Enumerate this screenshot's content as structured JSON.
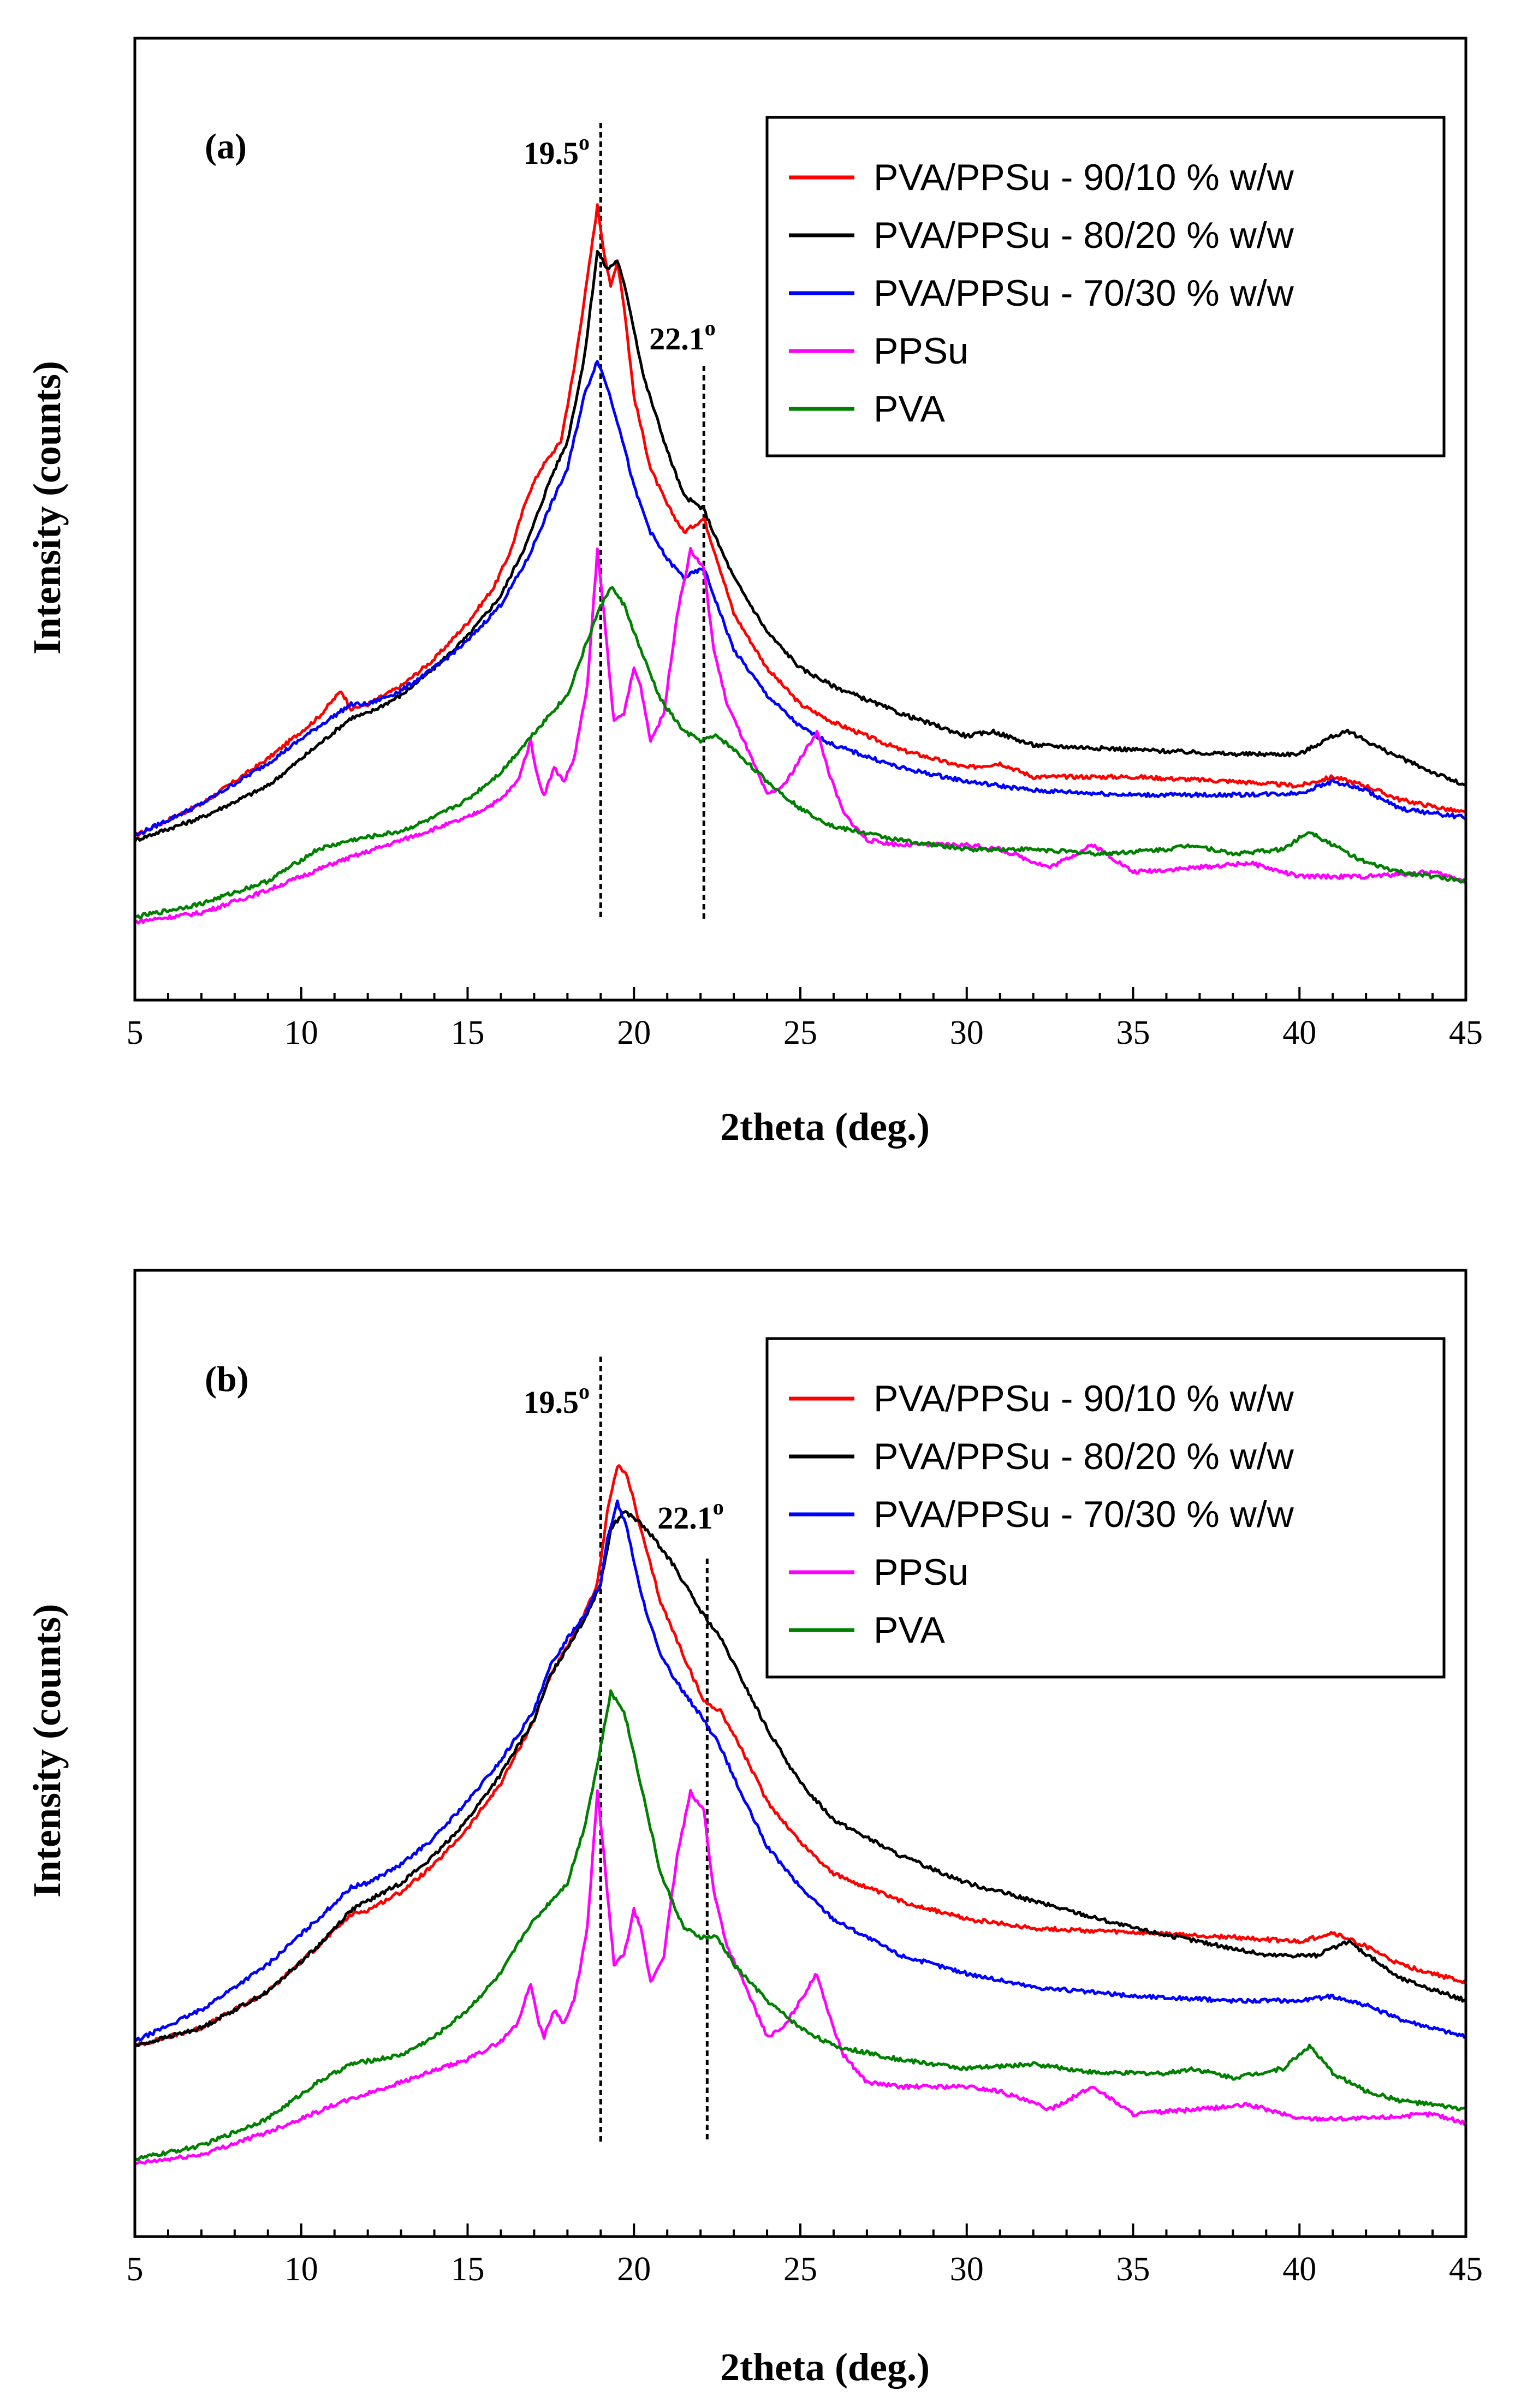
{
  "chart_data": [
    {
      "panel": "(a)",
      "type": "line",
      "xlabel": "2theta (deg.)",
      "ylabel": "Intensity (counts)",
      "xlim": [
        5,
        45
      ],
      "ylim": [
        0,
        100
      ],
      "xticks": [
        5,
        10,
        15,
        20,
        25,
        30,
        35,
        40,
        45
      ],
      "yticks_shown": false,
      "legend_position": "top-right",
      "annotations": [
        {
          "text": "19.5",
          "superscript": "o",
          "line_x": 19.0
        },
        {
          "text": "22.1",
          "superscript": "o",
          "line_x": 22.1
        }
      ],
      "series": [
        {
          "name": "PVA/PPSu - 90/10 % w/w",
          "color": "#ff0000",
          "x": [
            5,
            7,
            9,
            10.5,
            11.2,
            11.5,
            12,
            13,
            14,
            15,
            15.8,
            16.3,
            16.8,
            17.2,
            17.8,
            18.2,
            18.6,
            18.9,
            19.1,
            19.3,
            19.5,
            19.7,
            20,
            20.5,
            21,
            21.5,
            22.1,
            22.5,
            23,
            24,
            25,
            26,
            28,
            30,
            31,
            32,
            35,
            38,
            40,
            41,
            42,
            43,
            45
          ],
          "y": [
            13.5,
            17,
            22,
            26.5,
            29.5,
            27.5,
            28,
            30,
            33,
            37,
            41,
            45,
            51,
            54,
            57,
            65,
            75,
            83,
            78,
            74,
            77,
            72,
            62,
            54,
            50,
            47,
            48.5,
            44,
            38,
            32,
            28,
            26,
            23,
            21,
            21.5,
            20,
            20,
            19.5,
            19,
            20,
            19,
            17.5,
            16
          ]
        },
        {
          "name": "PVA/PPSu - 80/20 % w/w",
          "color": "#000000",
          "x": [
            5,
            7,
            9,
            10.5,
            11.5,
            12,
            13,
            14,
            15,
            16,
            16.8,
            17.5,
            18,
            18.5,
            18.9,
            19.2,
            19.5,
            19.8,
            20.3,
            21,
            21.5,
            22.1,
            22.5,
            23,
            24,
            25,
            26,
            28,
            30,
            30.8,
            32,
            35,
            38,
            40,
            41,
            41.5,
            42.5,
            44,
            45
          ],
          "y": [
            13,
            15.5,
            19,
            23.5,
            26.5,
            27,
            29,
            32,
            35.5,
            40,
            46,
            53,
            57,
            66,
            78,
            76,
            77,
            73,
            64,
            56,
            51,
            49.5,
            46,
            42,
            36,
            32,
            30,
            27,
            24.5,
            25,
            23.5,
            23,
            22.5,
            22.5,
            24.5,
            25,
            23,
            20.5,
            19
          ]
        },
        {
          "name": "PVA/PPSu - 70/30 % w/w",
          "color": "#0000ff",
          "x": [
            5,
            7,
            9,
            10.5,
            11.5,
            12,
            13,
            14,
            15,
            16,
            16.8,
            17.5,
            18,
            18.5,
            18.9,
            19.2,
            19.6,
            20,
            20.5,
            21,
            21.5,
            22.1,
            22.5,
            23,
            24,
            25,
            26,
            28,
            30,
            32,
            35,
            38,
            40,
            41,
            42,
            43,
            45
          ],
          "y": [
            13.5,
            17,
            21.5,
            25.5,
            28,
            28,
            29.5,
            32,
            35,
            39,
            44,
            50,
            54,
            62,
            66,
            63,
            58,
            52,
            47,
            44,
            42,
            43,
            39,
            34,
            29,
            25.5,
            23.5,
            21,
            19.5,
            18.5,
            18,
            18,
            18.2,
            19.5,
            18.5,
            16.5,
            15.5
          ]
        },
        {
          "name": "PPSu",
          "color": "#ff00ff",
          "x": [
            5,
            7,
            9,
            11,
            13,
            15,
            16,
            16.5,
            16.9,
            17.1,
            17.3,
            17.6,
            17.9,
            18.2,
            18.6,
            18.9,
            19.1,
            19.4,
            19.7,
            20,
            20.2,
            20.5,
            20.9,
            21.3,
            21.7,
            22.1,
            22.4,
            22.8,
            23.3,
            24,
            24.5,
            25,
            25.5,
            25.9,
            26.3,
            27,
            28,
            29,
            30,
            31,
            32.5,
            33.8,
            35,
            37,
            38.5,
            40,
            42,
            44,
            45
          ],
          "y": [
            4,
            5,
            7.5,
            10.5,
            13,
            15.5,
            17.5,
            19.5,
            24,
            20,
            18,
            21,
            19.5,
            22,
            30,
            45,
            38,
            26,
            27,
            32,
            30,
            24,
            27,
            38,
            45,
            43,
            34,
            28,
            24,
            18,
            19,
            22,
            25,
            20,
            16,
            13,
            12.5,
            12.5,
            12.5,
            12,
            10,
            12.5,
            9.5,
            10,
            10.5,
            9,
            9,
            9.5,
            8.5
          ]
        },
        {
          "name": "PVA",
          "color": "#008000",
          "x": [
            5,
            7,
            9,
            10.5,
            11.5,
            13,
            14,
            15,
            16,
            16.8,
            17.5,
            18,
            18.5,
            18.9,
            19.3,
            19.7,
            20.2,
            20.8,
            21.5,
            22,
            22.5,
            23,
            24,
            25,
            26,
            28,
            30,
            32,
            34,
            36,
            36.8,
            38,
            39.5,
            40.3,
            41,
            42,
            43,
            45
          ],
          "y": [
            4.5,
            6,
            8.5,
            12,
            13,
            14,
            15.5,
            17.5,
            20.5,
            24,
            27,
            29,
            34,
            38,
            41,
            39,
            34,
            28.5,
            25,
            24,
            24.5,
            23,
            19.5,
            16.5,
            14.5,
            13,
            12,
            12,
            11.5,
            12,
            12.5,
            11.5,
            12,
            14,
            12.5,
            10.5,
            9.5,
            8.5
          ]
        }
      ]
    },
    {
      "panel": "(b)",
      "type": "line",
      "xlabel": "2theta (deg.)",
      "ylabel": "Intensity (counts)",
      "xlim": [
        5,
        45
      ],
      "ylim": [
        0,
        100
      ],
      "xticks": [
        5,
        10,
        15,
        20,
        25,
        30,
        35,
        40,
        45
      ],
      "yticks_shown": false,
      "legend_position": "top-right",
      "annotations": [
        {
          "text": "19.5",
          "superscript": "o",
          "line_x": 19.0
        },
        {
          "text": "22.1",
          "superscript": "o",
          "line_x": 22.2
        }
      ],
      "series": [
        {
          "name": "PVA/PPSu - 90/10 % w/w",
          "color": "#ff0000",
          "x": [
            5,
            7,
            9,
            10.5,
            11.5,
            12,
            13,
            14,
            15,
            16,
            17,
            17.5,
            18,
            18.5,
            18.9,
            19.2,
            19.5,
            19.8,
            20.2,
            20.8,
            21.5,
            22.1,
            22.6,
            23.2,
            24,
            25,
            26,
            28,
            30,
            32,
            35,
            38,
            40,
            41,
            42,
            43,
            45
          ],
          "y": [
            17,
            19,
            23,
            28,
            31.5,
            32,
            34,
            37,
            41,
            46,
            53,
            58,
            61,
            64.5,
            68,
            76,
            81,
            80,
            74,
            66,
            60,
            55,
            54,
            50,
            44,
            39.5,
            36,
            33,
            31,
            30,
            29.5,
            29,
            28.5,
            29.5,
            28,
            26,
            24
          ]
        },
        {
          "name": "PVA/PPSu - 80/20 % w/w",
          "color": "#000000",
          "x": [
            5,
            7,
            9,
            10.5,
            11.5,
            12,
            13,
            14,
            15,
            16,
            17,
            17.5,
            18,
            18.5,
            19,
            19.3,
            19.7,
            20.1,
            20.6,
            21.2,
            22,
            22.6,
            23.3,
            24,
            25,
            26,
            28,
            30,
            32,
            34,
            35,
            37,
            39,
            40.5,
            41.5,
            43,
            45
          ],
          "y": [
            17,
            19,
            23,
            28,
            32,
            33,
            35,
            38,
            42,
            47,
            53,
            58,
            61,
            64,
            68,
            74,
            76,
            75,
            73,
            70,
            65,
            62,
            57,
            52,
            46,
            42,
            38,
            35,
            33,
            31,
            30,
            28.5,
            27,
            27,
            28.5,
            24.5,
            22
          ]
        },
        {
          "name": "PVA/PPSu - 70/30 % w/w",
          "color": "#0000ff",
          "x": [
            5,
            7,
            9,
            10.5,
            11.5,
            12,
            13,
            14,
            15,
            16,
            17,
            17.5,
            18,
            18.5,
            19,
            19.2,
            19.5,
            19.8,
            20.2,
            20.8,
            21.5,
            22.1,
            22.6,
            23.2,
            24,
            25,
            26,
            28,
            30,
            32,
            35,
            38,
            40,
            41,
            42,
            43,
            45
          ],
          "y": [
            17.5,
            21,
            26,
            31,
            34.5,
            35,
            37,
            40,
            44,
            48.5,
            54,
            59,
            62,
            64.5,
            68,
            73,
            77,
            74,
            67,
            60,
            56,
            53,
            50,
            45,
            39,
            34.5,
            31,
            27,
            25,
            23.5,
            22.5,
            22,
            22,
            22.5,
            21.5,
            20,
            18
          ]
        },
        {
          "name": "PPSu",
          "color": "#ff00ff",
          "x": [
            5,
            7,
            9,
            11,
            13,
            15,
            16,
            16.5,
            16.9,
            17.1,
            17.3,
            17.6,
            17.9,
            18.2,
            18.6,
            18.9,
            19.1,
            19.4,
            19.7,
            20,
            20.2,
            20.5,
            20.9,
            21.3,
            21.7,
            22.1,
            22.4,
            22.8,
            23.3,
            24,
            24.5,
            25,
            25.5,
            25.9,
            26.3,
            27,
            28,
            29,
            30,
            31,
            32.5,
            33.8,
            35,
            37,
            38.5,
            40,
            42,
            44,
            45
          ],
          "y": [
            4,
            5,
            7.5,
            10.5,
            13,
            15.5,
            17.5,
            19.5,
            24,
            20,
            18,
            21,
            19.5,
            22,
            30,
            45,
            38,
            26,
            27,
            32,
            30,
            24,
            27,
            38,
            45,
            43,
            34,
            28,
            24,
            18,
            19,
            22,
            25,
            20,
            16,
            13,
            12.5,
            12.5,
            12.5,
            12,
            10,
            12.5,
            9.5,
            10,
            10.5,
            9,
            9,
            9.5,
            8.5
          ]
        },
        {
          "name": "PVA",
          "color": "#008000",
          "x": [
            5,
            7,
            9,
            10.5,
            11.5,
            13,
            14,
            15,
            16,
            16.8,
            17.5,
            18,
            18.5,
            18.9,
            19.3,
            19.7,
            20.2,
            20.8,
            21.5,
            22,
            22.5,
            23,
            24,
            25,
            26,
            28,
            30,
            32,
            34,
            36,
            36.8,
            38,
            39.5,
            40.3,
            41,
            42,
            43,
            45
          ],
          "y": [
            4.5,
            6,
            9,
            13,
            15,
            16,
            18,
            21,
            25,
            30,
            33,
            35,
            41,
            48,
            56,
            54,
            46,
            36,
            30,
            29,
            29,
            26,
            22,
            19,
            17,
            15.5,
            14.5,
            15,
            14,
            14,
            14.5,
            13.5,
            14.5,
            17,
            14,
            12,
            11,
            10
          ]
        }
      ]
    }
  ]
}
